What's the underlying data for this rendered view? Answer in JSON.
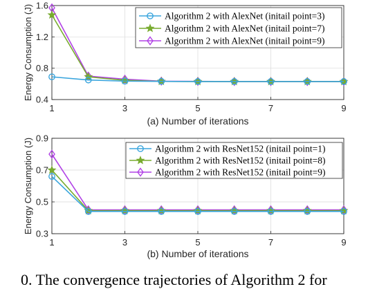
{
  "figure": {
    "caption_partial": "0. The convergence trajectories of Algorithm 2 for"
  },
  "chart_data": [
    {
      "type": "line",
      "subtitle": "(a) Number of iterations",
      "ylabel": "Energy Consumption (J)",
      "xlim": [
        1,
        9
      ],
      "ylim": [
        0.4,
        1.6
      ],
      "xticks": [
        1,
        3,
        5,
        7,
        9
      ],
      "yticks": [
        0.4,
        0.8,
        1.2,
        1.6
      ],
      "grid": true,
      "legend_position": "top-right",
      "x": [
        1,
        2,
        3,
        4,
        5,
        6,
        7,
        8,
        9
      ],
      "series": [
        {
          "name": "Algorithm 2 with AlexNet (initail point=3)",
          "color": "#3aa5dd",
          "marker": "circle",
          "values": [
            0.69,
            0.65,
            0.635,
            0.632,
            0.63,
            0.63,
            0.63,
            0.63,
            0.63
          ]
        },
        {
          "name": "Algorithm 2 with AlexNet (initail point=7)",
          "color": "#78ab2f",
          "marker": "star",
          "values": [
            1.48,
            0.69,
            0.645,
            0.632,
            0.63,
            0.63,
            0.63,
            0.63,
            0.63
          ]
        },
        {
          "name": "Algorithm 2 with AlexNet (initail point=9)",
          "color": "#b142e6",
          "marker": "diamond",
          "values": [
            1.57,
            0.7,
            0.66,
            0.635,
            0.632,
            0.63,
            0.63,
            0.63,
            0.63
          ]
        }
      ]
    },
    {
      "type": "line",
      "subtitle": "(b) Number of iterations",
      "ylabel": "Energy Consumption (J)",
      "xlim": [
        1,
        9
      ],
      "ylim": [
        0.3,
        0.9
      ],
      "xticks": [
        1,
        3,
        5,
        7,
        9
      ],
      "yticks": [
        0.3,
        0.5,
        0.7,
        0.9
      ],
      "grid": true,
      "legend_position": "top-right",
      "x": [
        1,
        2,
        3,
        4,
        5,
        6,
        7,
        8,
        9
      ],
      "series": [
        {
          "name": "Algorithm 2 with ResNet152 (initail point=1)",
          "color": "#3aa5dd",
          "marker": "circle",
          "values": [
            0.66,
            0.44,
            0.44,
            0.44,
            0.44,
            0.44,
            0.44,
            0.44,
            0.44
          ]
        },
        {
          "name": "Algorithm 2 with ResNet152 (initail point=8)",
          "color": "#78ab2f",
          "marker": "star",
          "values": [
            0.7,
            0.445,
            0.445,
            0.445,
            0.445,
            0.445,
            0.445,
            0.445,
            0.445
          ]
        },
        {
          "name": "Algorithm 2 with ResNet152 (initail point=9)",
          "color": "#b142e6",
          "marker": "diamond",
          "values": [
            0.8,
            0.45,
            0.45,
            0.45,
            0.45,
            0.45,
            0.45,
            0.45,
            0.45
          ]
        }
      ]
    }
  ]
}
